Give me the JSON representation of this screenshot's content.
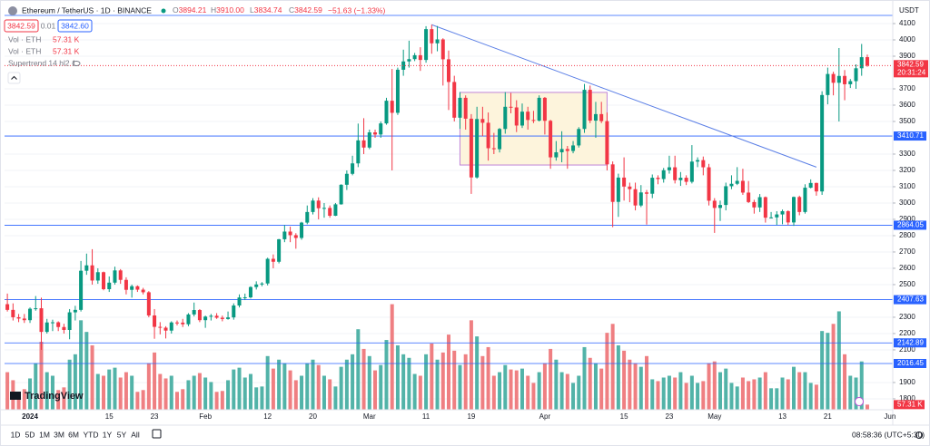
{
  "header": {
    "symbol": "Ethereum / TetherUS · 1D · BINANCE",
    "ohlc": [
      {
        "key": "O",
        "value": "3894.21"
      },
      {
        "key": "H",
        "value": "3910.00"
      },
      {
        "key": "L",
        "value": "3834.74"
      },
      {
        "key": "C",
        "value": "3842.59"
      }
    ],
    "change": "−51.63 (−1.33%)",
    "sell": "3842.59",
    "spread": "0.01",
    "buy": "3842.60",
    "indicators": [
      {
        "name": "Vol · ETH",
        "value": "57.31 K"
      },
      {
        "name": "Vol · ETH",
        "value": "57.31 K"
      },
      {
        "name": "Supertrend 14 hl2 1"
      }
    ]
  },
  "chart_data": {
    "type": "candlestick",
    "currency": "USDT",
    "categories": [
      null,
      null,
      null,
      null,
      "2024",
      null,
      null,
      null,
      null,
      null,
      null,
      null,
      null,
      null,
      null,
      null,
      null,
      null,
      "15",
      null,
      null,
      null,
      null,
      null,
      null,
      null,
      "23",
      null,
      null,
      null,
      null,
      null,
      null,
      null,
      null,
      "Feb",
      null,
      null,
      null,
      null,
      null,
      null,
      null,
      null,
      null,
      null,
      "12",
      null,
      null,
      null,
      null,
      null,
      null,
      null,
      "20",
      null,
      null,
      null,
      null,
      null,
      null,
      null,
      null,
      null,
      "Mar",
      null,
      null,
      null,
      null,
      null,
      null,
      null,
      null,
      null,
      "11",
      null,
      null,
      null,
      null,
      null,
      null,
      null,
      "19",
      null,
      null,
      null,
      null,
      null,
      null,
      null,
      null,
      null,
      null,
      null,
      null,
      "Apr",
      null,
      null,
      null,
      null,
      null,
      null,
      null,
      null,
      null,
      null,
      null,
      null,
      null,
      "15",
      null,
      null,
      null,
      null,
      null,
      null,
      null,
      "23",
      null,
      null,
      null,
      null,
      null,
      null,
      null,
      "May",
      null,
      null,
      null,
      null,
      null,
      null,
      null,
      null,
      null,
      null,
      null,
      "13",
      null,
      null,
      null,
      null,
      null,
      null,
      null,
      "21",
      null,
      null,
      null,
      null,
      null,
      null,
      null,
      null,
      null,
      null,
      "Jun"
    ],
    "open": [
      2380,
      2345,
      2300,
      2292,
      2282,
      2352,
      2355,
      2210,
      2268,
      2269,
      2240,
      2222,
      2330,
      2345,
      2585,
      2618,
      2525,
      2576,
      2472,
      2512,
      2587,
      2529,
      2468,
      2490,
      2469,
      2453,
      2311,
      2241,
      2236,
      2218,
      2268,
      2267,
      2257,
      2317,
      2344,
      2282,
      2304,
      2309,
      2297,
      2289,
      2299,
      2372,
      2421,
      2422,
      2485,
      2501,
      2507,
      2658,
      2640,
      2778,
      2825,
      2803,
      2786,
      2880,
      2945,
      3015,
      2968,
      2970,
      2922,
      2992,
      3112,
      3179,
      3243,
      3384,
      3340,
      3433,
      3420,
      3488,
      3627,
      3553,
      3817,
      3868,
      3882,
      3906,
      3877,
      4066,
      3979,
      4003,
      3881,
      3742,
      3523,
      3645,
      3517,
      3157,
      3515,
      3492,
      3336,
      3330,
      3454,
      3590,
      3586,
      3475,
      3560,
      3509,
      3505,
      3645,
      3504,
      3280,
      3311,
      3331,
      3319,
      3353,
      3454,
      3694,
      3505,
      3545,
      3502,
      3237,
      3007,
      3156,
      3101,
      3085,
      2985,
      3065,
      3057,
      3155,
      3147,
      3201,
      3219,
      3140,
      3155,
      3130,
      3254,
      3263,
      3219,
      3014,
      2970,
      2988,
      3103,
      3118,
      3136,
      3064,
      3006,
      2973,
      3036,
      2910,
      2912,
      2930,
      2950,
      2881,
      3037,
      2945,
      3094,
      3123,
      3071,
      3662,
      3791,
      3737,
      3779,
      3728,
      3747,
      3826,
      3894.21,
      null,
      null,
      null,
      null
    ],
    "high": [
      2445,
      2385,
      2320,
      2320,
      2360,
      2430,
      2420,
      2290,
      2285,
      2275,
      2260,
      2350,
      2370,
      2645,
      2690,
      2717,
      2600,
      2580,
      2550,
      2610,
      2595,
      2545,
      2500,
      2495,
      2480,
      2460,
      2350,
      2270,
      2245,
      2275,
      2280,
      2290,
      2325,
      2390,
      2350,
      2310,
      2320,
      2325,
      2310,
      2335,
      2385,
      2440,
      2445,
      2490,
      2520,
      2515,
      2665,
      2685,
      2780,
      2865,
      2855,
      2815,
      2885,
      2985,
      3030,
      3035,
      3000,
      2985,
      3000,
      3115,
      3200,
      3290,
      3487,
      3520,
      3450,
      3450,
      3500,
      3645,
      3822,
      3830,
      3940,
      3995,
      3920,
      3955,
      4084,
      4093,
      4085,
      4010,
      3935,
      3780,
      3680,
      3660,
      3545,
      3590,
      3590,
      3555,
      3430,
      3460,
      3680,
      3675,
      3630,
      3610,
      3590,
      3565,
      3660,
      3650,
      3510,
      3380,
      3440,
      3350,
      3380,
      3465,
      3730,
      3720,
      3620,
      3620,
      3555,
      3255,
      3180,
      3280,
      3125,
      3125,
      3110,
      3080,
      3175,
      3170,
      3215,
      3290,
      3290,
      3190,
      3170,
      3355,
      3280,
      3285,
      3240,
      3030,
      3015,
      3125,
      3170,
      3220,
      3210,
      3135,
      3020,
      3055,
      3040,
      2945,
      2950,
      2960,
      2955,
      3040,
      3045,
      3115,
      3145,
      3125,
      3685,
      3830,
      3805,
      3950,
      3815,
      3760,
      3850,
      3975,
      3910,
      null,
      null,
      null,
      null
    ],
    "low": [
      2335,
      2280,
      2270,
      2265,
      2265,
      2340,
      2100,
      2200,
      2215,
      2215,
      2200,
      2165,
      2280,
      2335,
      2560,
      2500,
      2505,
      2465,
      2455,
      2500,
      2505,
      2440,
      2420,
      2455,
      2440,
      2300,
      2168,
      2195,
      2170,
      2200,
      2250,
      2240,
      2245,
      2305,
      2270,
      2235,
      2280,
      2290,
      2275,
      2285,
      2285,
      2360,
      2405,
      2415,
      2470,
      2490,
      2495,
      2600,
      2630,
      2760,
      2760,
      2720,
      2775,
      2870,
      2930,
      2900,
      2910,
      2910,
      2920,
      2990,
      3080,
      3170,
      3220,
      3300,
      3330,
      3400,
      3400,
      3480,
      3200,
      3540,
      3780,
      3830,
      3870,
      3810,
      3860,
      3915,
      3930,
      3720,
      3570,
      3500,
      3455,
      3450,
      3056,
      3150,
      3410,
      3260,
      3300,
      3310,
      3425,
      3550,
      3435,
      3460,
      3450,
      3490,
      3500,
      3420,
      3210,
      3260,
      3250,
      3210,
      3305,
      3340,
      3430,
      3490,
      3400,
      3490,
      3200,
      2852,
      2915,
      3015,
      3005,
      2955,
      2975,
      2868,
      3030,
      3115,
      3125,
      3180,
      3120,
      3105,
      3110,
      3120,
      3220,
      3170,
      2985,
      2817,
      2890,
      2955,
      3085,
      3110,
      3050,
      3000,
      2935,
      2945,
      2880,
      2905,
      2865,
      2870,
      2865,
      2860,
      2925,
      2935,
      3090,
      3045,
      3050,
      3605,
      3660,
      3500,
      3630,
      3705,
      3700,
      3780,
      3834.74,
      null,
      null,
      null,
      null
    ],
    "close": [
      2345,
      2300,
      2292,
      2282,
      2352,
      2355,
      2210,
      2268,
      2269,
      2240,
      2222,
      2330,
      2345,
      2585,
      2618,
      2525,
      2576,
      2472,
      2512,
      2587,
      2529,
      2468,
      2490,
      2469,
      2453,
      2311,
      2241,
      2236,
      2218,
      2268,
      2267,
      2257,
      2317,
      2344,
      2282,
      2304,
      2309,
      2297,
      2289,
      2299,
      2372,
      2421,
      2422,
      2485,
      2501,
      2507,
      2658,
      2640,
      2778,
      2825,
      2803,
      2786,
      2880,
      2945,
      3015,
      2968,
      2970,
      2922,
      2992,
      3112,
      3179,
      3243,
      3384,
      3340,
      3433,
      3420,
      3488,
      3627,
      3553,
      3817,
      3868,
      3882,
      3906,
      3877,
      4066,
      3979,
      4003,
      3881,
      3742,
      3523,
      3645,
      3517,
      3157,
      3515,
      3492,
      3336,
      3330,
      3454,
      3590,
      3586,
      3475,
      3560,
      3509,
      3505,
      3645,
      3504,
      3280,
      3311,
      3331,
      3319,
      3353,
      3454,
      3694,
      3505,
      3545,
      3502,
      3237,
      3007,
      3156,
      3101,
      3085,
      2985,
      3065,
      3057,
      3155,
      3147,
      3201,
      3219,
      3140,
      3155,
      3130,
      3254,
      3263,
      3219,
      3014,
      2970,
      2988,
      3103,
      3118,
      3136,
      3064,
      3006,
      2973,
      3036,
      2910,
      2912,
      2930,
      2950,
      2881,
      3037,
      2945,
      3094,
      3123,
      3071,
      3662,
      3791,
      3737,
      3779,
      3728,
      3747,
      3826,
      3894,
      3842.59,
      null,
      null,
      null,
      null
    ],
    "volume": [
      420,
      330,
      200,
      230,
      350,
      520,
      760,
      420,
      380,
      220,
      250,
      560,
      620,
      1000,
      870,
      720,
      400,
      380,
      450,
      470,
      360,
      420,
      380,
      200,
      220,
      520,
      640,
      400,
      350,
      380,
      200,
      230,
      330,
      380,
      410,
      360,
      310,
      200,
      210,
      330,
      450,
      470,
      360,
      400,
      250,
      260,
      600,
      460,
      560,
      520,
      440,
      330,
      380,
      520,
      560,
      500,
      380,
      340,
      260,
      480,
      560,
      620,
      900,
      680,
      600,
      440,
      500,
      780,
      1180,
      720,
      620,
      580,
      400,
      380,
      620,
      740,
      560,
      640,
      840,
      660,
      500,
      620,
      1000,
      820,
      600,
      700,
      380,
      420,
      500,
      450,
      440,
      460,
      380,
      300,
      420,
      520,
      680,
      560,
      420,
      400,
      300,
      380,
      700,
      580,
      520,
      460,
      860,
      960,
      720,
      660,
      560,
      520,
      480,
      600,
      340,
      320,
      360,
      380,
      360,
      420,
      300,
      380,
      300,
      320,
      520,
      540,
      420,
      460,
      300,
      260,
      360,
      320,
      340,
      360,
      420,
      240,
      240,
      360,
      340,
      480,
      420,
      420,
      300,
      280,
      880,
      860,
      960,
      1100,
      620,
      380,
      360,
      540,
      57.31,
      null,
      null,
      null,
      null
    ],
    "volume_label": "57.31 K",
    "countdown": "20:31:24",
    "ylim": [
      1733,
      4200
    ],
    "y2lim": [
      0,
      4500
    ],
    "yticks": [
      1800,
      1900,
      2100,
      2200,
      2300,
      2500,
      2600,
      2700,
      2800,
      2900,
      3000,
      3100,
      3200,
      3300,
      3500,
      3600,
      3700,
      3900,
      4000,
      4100
    ],
    "levels": [
      3410.71,
      2864.05,
      2407.63,
      2142.89,
      2016.45
    ],
    "top_level": 4150,
    "trendline": {
      "x": [
        75,
        143
      ],
      "y": [
        4093,
        3220
      ]
    },
    "box": {
      "x": [
        80,
        106
      ],
      "y": [
        3233,
        3678
      ]
    },
    "up_color": "#089981",
    "down_color": "#f23645",
    "volume_up_color": "#52b3a8",
    "volume_down_color": "#ef7f82",
    "level_color": "#2962ff",
    "trend_color": "#5b7fe6",
    "box_color": "#c084d8",
    "box_fill": "#fdf4dc",
    "grid": true
  },
  "footer": {
    "ranges": [
      "1D",
      "5D",
      "1M",
      "3M",
      "6M",
      "YTD",
      "1Y",
      "5Y",
      "All"
    ],
    "clock": "08:58:36 (UTC+5:30)",
    "logo": "TradingView"
  }
}
